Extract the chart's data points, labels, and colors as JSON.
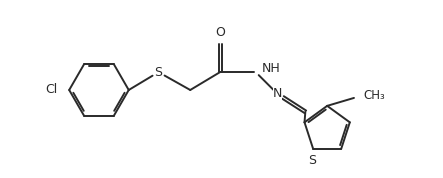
{
  "bg_color": "#ffffff",
  "line_color": "#2a2a2a",
  "line_width": 1.4,
  "font_size": 9,
  "figsize": [
    4.43,
    1.78
  ],
  "dpi": 100,
  "xlim": [
    0,
    4.43
  ],
  "ylim": [
    0,
    1.78
  ]
}
